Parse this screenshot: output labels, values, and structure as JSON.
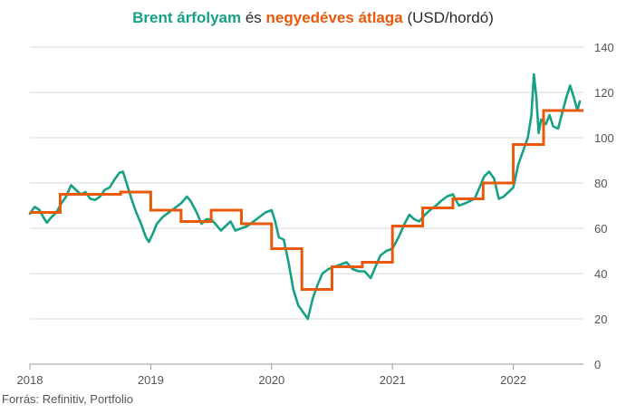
{
  "title": {
    "part1": "Brent árfolyam",
    "part2": " és ",
    "part3": "negyedéves átlaga",
    "part4": " (USD/hordó)"
  },
  "source": "Forrás: Refinitiv, Portfolio",
  "colors": {
    "price": "#16a085",
    "average": "#e8590c",
    "grid": "#d9d9d9",
    "axis": "#999999"
  },
  "chart_data": {
    "type": "line",
    "title": "Brent árfolyam és negyedéves átlaga (USD/hordó)",
    "y_axis": {
      "position": "right",
      "ylim": [
        0,
        140
      ],
      "ticks": [
        0,
        20,
        40,
        60,
        80,
        100,
        120,
        140
      ]
    },
    "x_axis": {
      "xlim": [
        2018.0,
        2022.58
      ],
      "ticks": [
        2018,
        2019,
        2020,
        2021,
        2022
      ],
      "tick_labels": [
        "2018",
        "2019",
        "2020",
        "2021",
        "2022"
      ]
    },
    "grid": "horizontal",
    "series": [
      {
        "name": "Brent árfolyam",
        "style": "line",
        "points": [
          [
            2018.0,
            66.5
          ],
          [
            2018.04,
            69.5
          ],
          [
            2018.08,
            68
          ],
          [
            2018.11,
            65
          ],
          [
            2018.14,
            62.5
          ],
          [
            2018.18,
            65
          ],
          [
            2018.22,
            67
          ],
          [
            2018.26,
            71
          ],
          [
            2018.3,
            74
          ],
          [
            2018.34,
            79
          ],
          [
            2018.38,
            77
          ],
          [
            2018.42,
            75
          ],
          [
            2018.46,
            76
          ],
          [
            2018.5,
            73
          ],
          [
            2018.54,
            72.5
          ],
          [
            2018.58,
            74
          ],
          [
            2018.62,
            77
          ],
          [
            2018.66,
            78
          ],
          [
            2018.7,
            81.5
          ],
          [
            2018.74,
            84.5
          ],
          [
            2018.77,
            85
          ],
          [
            2018.8,
            80
          ],
          [
            2018.84,
            73
          ],
          [
            2018.88,
            67
          ],
          [
            2018.92,
            62
          ],
          [
            2018.96,
            56
          ],
          [
            2018.985,
            54
          ],
          [
            2019.02,
            58
          ],
          [
            2019.05,
            62
          ],
          [
            2019.1,
            65
          ],
          [
            2019.15,
            67
          ],
          [
            2019.2,
            69
          ],
          [
            2019.25,
            71
          ],
          [
            2019.3,
            74
          ],
          [
            2019.33,
            72
          ],
          [
            2019.38,
            67
          ],
          [
            2019.42,
            62
          ],
          [
            2019.46,
            64
          ],
          [
            2019.5,
            64
          ],
          [
            2019.55,
            61
          ],
          [
            2019.58,
            59
          ],
          [
            2019.62,
            61
          ],
          [
            2019.66,
            63
          ],
          [
            2019.7,
            59
          ],
          [
            2019.75,
            60
          ],
          [
            2019.8,
            61
          ],
          [
            2019.85,
            63
          ],
          [
            2019.9,
            65
          ],
          [
            2019.95,
            67
          ],
          [
            2020.0,
            68
          ],
          [
            2020.03,
            63
          ],
          [
            2020.06,
            56
          ],
          [
            2020.1,
            55
          ],
          [
            2020.14,
            45
          ],
          [
            2020.18,
            33
          ],
          [
            2020.22,
            26
          ],
          [
            2020.26,
            23
          ],
          [
            2020.3,
            20
          ],
          [
            2020.34,
            29
          ],
          [
            2020.38,
            35
          ],
          [
            2020.42,
            40
          ],
          [
            2020.47,
            42
          ],
          [
            2020.52,
            43
          ],
          [
            2020.57,
            44
          ],
          [
            2020.62,
            45
          ],
          [
            2020.67,
            42
          ],
          [
            2020.72,
            41
          ],
          [
            2020.77,
            41
          ],
          [
            2020.82,
            38
          ],
          [
            2020.86,
            43
          ],
          [
            2020.9,
            48
          ],
          [
            2020.95,
            50
          ],
          [
            2021.0,
            51
          ],
          [
            2021.05,
            56
          ],
          [
            2021.1,
            62
          ],
          [
            2021.14,
            66
          ],
          [
            2021.18,
            64
          ],
          [
            2021.22,
            63
          ],
          [
            2021.27,
            66
          ],
          [
            2021.31,
            68
          ],
          [
            2021.36,
            70
          ],
          [
            2021.4,
            72
          ],
          [
            2021.45,
            74
          ],
          [
            2021.5,
            75
          ],
          [
            2021.55,
            70
          ],
          [
            2021.6,
            71
          ],
          [
            2021.64,
            72
          ],
          [
            2021.68,
            73
          ],
          [
            2021.72,
            78
          ],
          [
            2021.76,
            83
          ],
          [
            2021.8,
            85
          ],
          [
            2021.84,
            82
          ],
          [
            2021.88,
            73
          ],
          [
            2021.92,
            74
          ],
          [
            2021.96,
            76
          ],
          [
            2022.0,
            78
          ],
          [
            2022.04,
            88
          ],
          [
            2022.08,
            94
          ],
          [
            2022.12,
            100
          ],
          [
            2022.15,
            110
          ],
          [
            2022.17,
            128
          ],
          [
            2022.19,
            118
          ],
          [
            2022.21,
            102
          ],
          [
            2022.23,
            108
          ],
          [
            2022.27,
            106
          ],
          [
            2022.3,
            110
          ],
          [
            2022.33,
            105
          ],
          [
            2022.37,
            104
          ],
          [
            2022.4,
            110
          ],
          [
            2022.44,
            118
          ],
          [
            2022.47,
            123
          ],
          [
            2022.5,
            118
          ],
          [
            2022.53,
            112
          ],
          [
            2022.55,
            116
          ]
        ]
      },
      {
        "name": "negyedéves átlaga",
        "style": "step",
        "segments": [
          {
            "from": 2018.0,
            "to": 2018.25,
            "value": 67
          },
          {
            "from": 2018.25,
            "to": 2018.75,
            "value": 75
          },
          {
            "from": 2018.75,
            "to": 2019.0,
            "value": 76
          },
          {
            "from": 2019.0,
            "to": 2019.25,
            "value": 68
          },
          {
            "from": 2019.25,
            "to": 2019.5,
            "value": 63
          },
          {
            "from": 2019.5,
            "to": 2019.75,
            "value": 68
          },
          {
            "from": 2019.75,
            "to": 2020.0,
            "value": 62
          },
          {
            "from": 2020.0,
            "to": 2020.25,
            "value": 51
          },
          {
            "from": 2020.25,
            "to": 2020.5,
            "value": 33
          },
          {
            "from": 2020.5,
            "to": 2020.75,
            "value": 43
          },
          {
            "from": 2020.75,
            "to": 2021.0,
            "value": 45
          },
          {
            "from": 2021.0,
            "to": 2021.25,
            "value": 61
          },
          {
            "from": 2021.25,
            "to": 2021.5,
            "value": 69
          },
          {
            "from": 2021.5,
            "to": 2021.75,
            "value": 73
          },
          {
            "from": 2021.75,
            "to": 2022.0,
            "value": 80
          },
          {
            "from": 2022.0,
            "to": 2022.25,
            "value": 97
          },
          {
            "from": 2022.25,
            "to": 2022.5,
            "value": 112
          },
          {
            "from": 2022.5,
            "to": 2022.58,
            "value": 112
          }
        ]
      }
    ]
  }
}
